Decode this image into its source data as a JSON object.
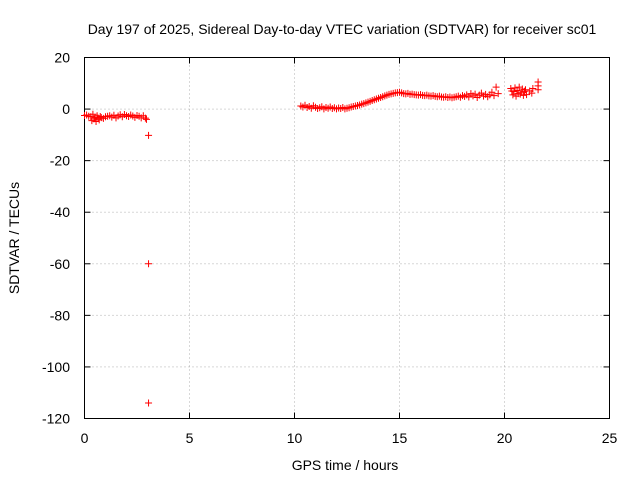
{
  "chart_data": {
    "type": "scatter",
    "title": "Day 197 of 2025, Sidereal Day-to-day VTEC variation (SDTVAR) for receiver sc01",
    "xlabel": "GPS time / hours",
    "ylabel": "SDTVAR / TECUs",
    "xlim": [
      0,
      25
    ],
    "ylim": [
      -120,
      20
    ],
    "xticks": [
      "0",
      "5",
      "10",
      "15",
      "20",
      "25"
    ],
    "yticks": [
      "20",
      "0",
      "-20",
      "-40",
      "-60",
      "-80",
      "-100",
      "-120"
    ],
    "grid": true,
    "marker": "+",
    "color": "#ff0000",
    "series": [
      {
        "points": [
          [
            0.0,
            -2.5
          ],
          [
            0.1,
            -2.3
          ],
          [
            0.2,
            -2.8
          ],
          [
            0.3,
            -3.0
          ],
          [
            0.35,
            -4.5
          ],
          [
            0.4,
            -2.0
          ],
          [
            0.45,
            -3.8
          ],
          [
            0.5,
            -3.2
          ],
          [
            0.55,
            -4.8
          ],
          [
            0.6,
            -2.6
          ],
          [
            0.65,
            -3.5
          ],
          [
            0.7,
            -4.2
          ],
          [
            0.75,
            -2.9
          ],
          [
            0.8,
            -3.3
          ],
          [
            0.9,
            -3.6
          ],
          [
            1.0,
            -3.0
          ],
          [
            1.1,
            -2.8
          ],
          [
            1.2,
            -2.6
          ],
          [
            1.3,
            -3.1
          ],
          [
            1.4,
            -2.4
          ],
          [
            1.5,
            -3.4
          ],
          [
            1.6,
            -2.7
          ],
          [
            1.7,
            -2.2
          ],
          [
            1.8,
            -3.0
          ],
          [
            1.9,
            -2.1
          ],
          [
            2.0,
            -2.6
          ],
          [
            2.1,
            -2.9
          ],
          [
            2.2,
            -2.3
          ],
          [
            2.3,
            -2.7
          ],
          [
            2.4,
            -3.2
          ],
          [
            2.5,
            -2.5
          ],
          [
            2.6,
            -2.8
          ],
          [
            2.7,
            -3.4
          ],
          [
            2.8,
            -2.6
          ],
          [
            2.9,
            -3.5
          ],
          [
            2.95,
            -4.0
          ],
          [
            3.05,
            -10.2
          ],
          [
            3.05,
            -60
          ],
          [
            3.05,
            -114
          ],
          [
            10.3,
            1.2
          ],
          [
            10.4,
            0.8
          ],
          [
            10.5,
            1.5
          ],
          [
            10.6,
            0.6
          ],
          [
            10.7,
            1.0
          ],
          [
            10.8,
            0.3
          ],
          [
            10.9,
            1.3
          ],
          [
            11.0,
            0.7
          ],
          [
            11.1,
            0.2
          ],
          [
            11.2,
            0.5
          ],
          [
            11.3,
            0.9
          ],
          [
            11.4,
            0.1
          ],
          [
            11.5,
            0.6
          ],
          [
            11.6,
            0.3
          ],
          [
            11.7,
            0.8
          ],
          [
            11.8,
            0.2
          ],
          [
            11.9,
            0.5
          ],
          [
            12.0,
            0.1
          ],
          [
            12.1,
            0.4
          ],
          [
            12.2,
            0.2
          ],
          [
            12.3,
            0.6
          ],
          [
            12.4,
            0.1
          ],
          [
            12.5,
            0.3
          ],
          [
            12.6,
            0.5
          ],
          [
            12.7,
            0.8
          ],
          [
            12.8,
            1.0
          ],
          [
            12.9,
            1.2
          ],
          [
            13.0,
            1.4
          ],
          [
            13.1,
            1.6
          ],
          [
            13.2,
            1.9
          ],
          [
            13.3,
            2.1
          ],
          [
            13.4,
            2.4
          ],
          [
            13.5,
            2.7
          ],
          [
            13.6,
            3.0
          ],
          [
            13.7,
            3.3
          ],
          [
            13.8,
            3.6
          ],
          [
            13.9,
            3.9
          ],
          [
            14.0,
            4.2
          ],
          [
            14.1,
            4.5
          ],
          [
            14.2,
            4.8
          ],
          [
            14.3,
            5.1
          ],
          [
            14.4,
            5.4
          ],
          [
            14.5,
            5.7
          ],
          [
            14.6,
            5.9
          ],
          [
            14.7,
            6.1
          ],
          [
            14.8,
            6.3
          ],
          [
            14.9,
            6.4
          ],
          [
            15.0,
            6.5
          ],
          [
            15.1,
            6.3
          ],
          [
            15.2,
            6.0
          ],
          [
            15.3,
            5.9
          ],
          [
            15.4,
            6.1
          ],
          [
            15.5,
            5.7
          ],
          [
            15.6,
            5.8
          ],
          [
            15.7,
            5.6
          ],
          [
            15.8,
            5.5
          ],
          [
            15.9,
            5.4
          ],
          [
            16.0,
            5.6
          ],
          [
            16.1,
            5.3
          ],
          [
            16.2,
            5.2
          ],
          [
            16.3,
            5.4
          ],
          [
            16.4,
            5.1
          ],
          [
            16.5,
            5.0
          ],
          [
            16.6,
            5.2
          ],
          [
            16.7,
            4.9
          ],
          [
            16.8,
            4.8
          ],
          [
            16.9,
            5.0
          ],
          [
            17.0,
            4.7
          ],
          [
            17.1,
            4.6
          ],
          [
            17.2,
            4.8
          ],
          [
            17.3,
            4.5
          ],
          [
            17.4,
            4.7
          ],
          [
            17.5,
            4.4
          ],
          [
            17.6,
            4.6
          ],
          [
            17.7,
            4.8
          ],
          [
            17.8,
            5.0
          ],
          [
            17.9,
            4.6
          ],
          [
            18.0,
            5.2
          ],
          [
            18.1,
            4.9
          ],
          [
            18.2,
            5.5
          ],
          [
            18.3,
            4.7
          ],
          [
            18.4,
            6.0
          ],
          [
            18.5,
            5.1
          ],
          [
            18.6,
            5.8
          ],
          [
            18.7,
            4.5
          ],
          [
            18.8,
            5.4
          ],
          [
            18.9,
            6.2
          ],
          [
            19.0,
            5.0
          ],
          [
            19.1,
            5.7
          ],
          [
            19.2,
            4.8
          ],
          [
            19.3,
            5.5
          ],
          [
            19.4,
            6.5
          ],
          [
            19.5,
            5.2
          ],
          [
            19.6,
            8.5
          ],
          [
            19.7,
            6.0
          ],
          [
            20.3,
            8.0
          ],
          [
            20.35,
            7.0
          ],
          [
            20.4,
            5.5
          ],
          [
            20.45,
            6.8
          ],
          [
            20.5,
            8.2
          ],
          [
            20.55,
            5.0
          ],
          [
            20.6,
            7.2
          ],
          [
            20.65,
            6.0
          ],
          [
            20.7,
            8.5
          ],
          [
            20.75,
            5.8
          ],
          [
            20.8,
            6.5
          ],
          [
            20.85,
            7.8
          ],
          [
            20.9,
            5.3
          ],
          [
            20.95,
            6.9
          ],
          [
            21.0,
            7.5
          ],
          [
            21.05,
            5.6
          ],
          [
            21.2,
            7.0
          ],
          [
            21.3,
            6.2
          ],
          [
            21.35,
            8.0
          ],
          [
            21.6,
            10.5
          ],
          [
            21.6,
            9.0
          ],
          [
            21.6,
            7.5
          ]
        ]
      }
    ]
  }
}
